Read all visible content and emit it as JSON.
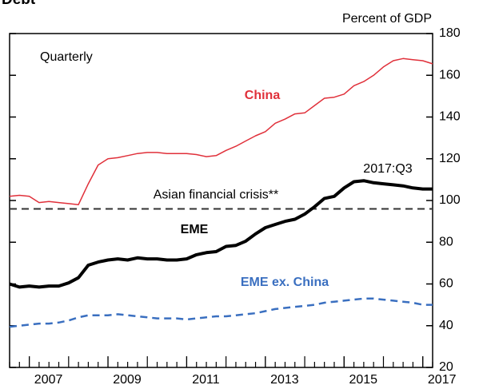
{
  "chart_data": {
    "type": "line",
    "title": "Debt",
    "y_axis_label": "Percent of GDP",
    "annotations": [
      "Quarterly",
      "2017:Q3"
    ],
    "x": [
      2006.5,
      2006.75,
      2007,
      2007.25,
      2007.5,
      2007.75,
      2008,
      2008.25,
      2008.5,
      2008.75,
      2009,
      2009.25,
      2009.5,
      2009.75,
      2010,
      2010.25,
      2010.5,
      2010.75,
      2011,
      2011.25,
      2011.5,
      2011.75,
      2012,
      2012.25,
      2012.5,
      2012.75,
      2013,
      2013.25,
      2013.5,
      2013.75,
      2014,
      2014.25,
      2014.5,
      2014.75,
      2015,
      2015.25,
      2015.5,
      2015.75,
      2016,
      2016.25,
      2016.5,
      2016.75,
      2017,
      2017.25
    ],
    "series": [
      {
        "name": "China",
        "color": "#e0303a",
        "width": 1.5,
        "dashed": false,
        "values": [
          102,
          102.5,
          102,
          99,
          99.5,
          99,
          98.5,
          98,
          108,
          117,
          120,
          120.5,
          121.5,
          122.5,
          123,
          123,
          122.5,
          122.5,
          122.5,
          122,
          121,
          121.5,
          124,
          126,
          128.5,
          131,
          133,
          137,
          139,
          141.5,
          142,
          145.5,
          149,
          149.5,
          151,
          155,
          157,
          160,
          164,
          167,
          168,
          167.5,
          167,
          165.5
        ]
      },
      {
        "name": "EME",
        "color": "#000000",
        "width": 4,
        "dashed": false,
        "values": [
          60,
          58.5,
          59,
          58.5,
          59,
          59,
          60.5,
          63,
          69,
          70.5,
          71.5,
          72,
          71.5,
          72.5,
          72,
          72,
          71.5,
          71.5,
          72,
          74,
          75,
          75.5,
          78,
          78.5,
          80.5,
          84,
          87,
          88.5,
          90,
          91,
          93.5,
          97,
          101,
          102,
          106,
          109,
          109.5,
          108.5,
          108,
          107.5,
          107,
          106,
          105.5,
          105.5
        ]
      },
      {
        "name": "EME ex. China",
        "color": "#3a6fc0",
        "width": 2.5,
        "dashed": true,
        "values": [
          39.5,
          40,
          40.5,
          41,
          41,
          41.5,
          42.5,
          44,
          45,
          45,
          45,
          45.5,
          45,
          44.5,
          44,
          43.5,
          43.5,
          43.5,
          43,
          43.5,
          44,
          44.5,
          44.5,
          45,
          45.5,
          46,
          47,
          48,
          48.5,
          49,
          49.5,
          50,
          51,
          51.5,
          52,
          52.5,
          53,
          53,
          52.5,
          52,
          51.5,
          51,
          50,
          50
        ]
      }
    ],
    "reference_lines": [
      {
        "label": "Asian financial crisis**",
        "value": 96,
        "color": "#333333"
      }
    ],
    "xlim": [
      2006.5,
      2017.25
    ],
    "xticks": [
      2007,
      2009,
      2011,
      2013,
      2015,
      2017
    ],
    "ylim": [
      20,
      180
    ],
    "yticks": [
      20,
      40,
      60,
      80,
      100,
      120,
      140,
      160,
      180
    ],
    "y_axis_side": "right"
  }
}
